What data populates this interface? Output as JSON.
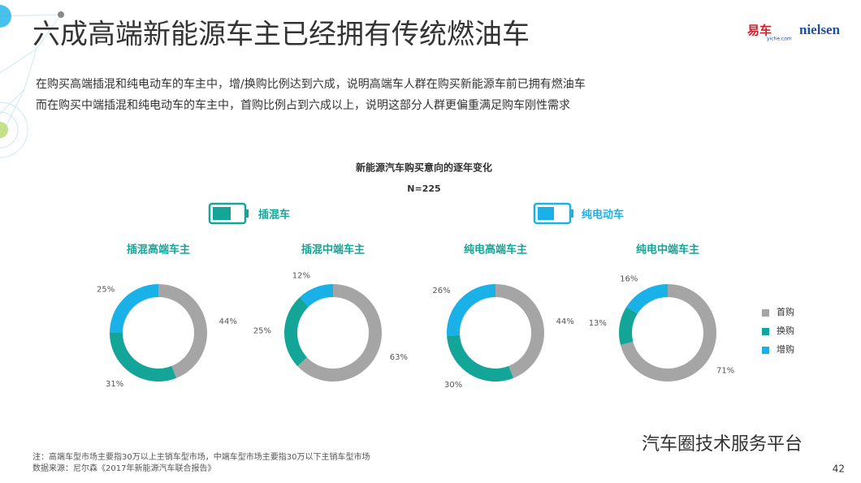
{
  "header": {
    "title": "六成高端新能源车主已经拥有传统燃油车",
    "lines": [
      "在购买高端插混和纯电动车的车主中，增/换购比例达到六成，说明高端车人群在购买新能源车前已拥有燃油车",
      "而在购买中端插混和纯电动车的车主中，首购比例占到六成以上，说明这部分人群更偏重满足购车刚性需求"
    ],
    "logos": [
      "易车",
      "yiche.com",
      "nielsen"
    ]
  },
  "figure_title": "新能源汽车购买意向的逐年变化",
  "sample": "N=225",
  "groups": [
    "插混车",
    "纯电动车"
  ],
  "chart_data": [
    {
      "type": "donut",
      "title": "插混高端车主",
      "categories": [
        "首购",
        "换购",
        "增购"
      ],
      "values": [
        44,
        31,
        25
      ],
      "value_labels": [
        "44%",
        "31%",
        "25%"
      ],
      "colors": [
        "#a5a5a5",
        "#13a597",
        "#1ab1e8"
      ]
    },
    {
      "type": "donut",
      "title": "插混中端车主",
      "categories": [
        "首购",
        "换购",
        "增购"
      ],
      "values": [
        63,
        25,
        12
      ],
      "value_labels": [
        "63%",
        "25%",
        "12%"
      ],
      "colors": [
        "#a5a5a5",
        "#13a597",
        "#1ab1e8"
      ]
    },
    {
      "type": "donut",
      "title": "纯电高端车主",
      "categories": [
        "首购",
        "换购",
        "增购"
      ],
      "values": [
        44,
        30,
        26
      ],
      "value_labels": [
        "44%",
        "30%",
        "26%"
      ],
      "colors": [
        "#a5a5a5",
        "#13a597",
        "#1ab1e8"
      ]
    },
    {
      "type": "donut",
      "title": "纯电中端车主",
      "categories": [
        "首购",
        "换购",
        "增购"
      ],
      "values": [
        71,
        13,
        16
      ],
      "value_labels": [
        "71%",
        "13%",
        "16%"
      ],
      "colors": [
        "#a5a5a5",
        "#13a597",
        "#1ab1e8"
      ]
    }
  ],
  "footer": {
    "note": "注：高端车型市场主要指30万以上主销车型市场，中端车型市场主要指30万以下主销车型市场",
    "source": "数据来源：尼尔森《2017年新能源汽车联合报告》"
  },
  "watermark": "汽车圈技术服务平台",
  "page_number": "42"
}
